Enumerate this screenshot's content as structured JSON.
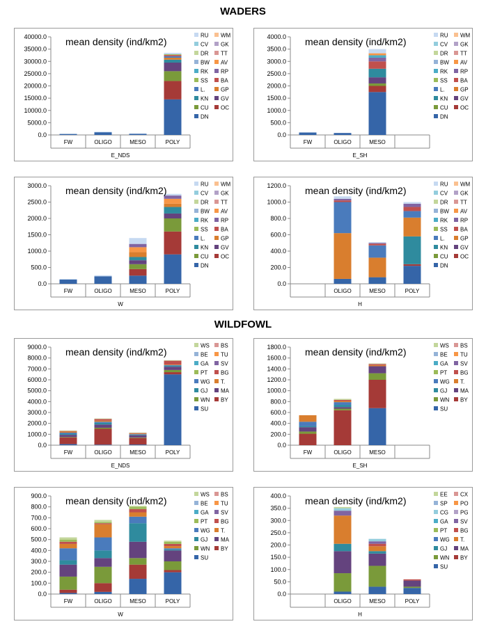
{
  "sections": {
    "waders": "WADERS",
    "wildfowl": "WILDFOWL"
  },
  "colors": {
    "DN": "#3565a8",
    "OC": "#a53a37",
    "CU": "#7a9a3a",
    "GV": "#64437e",
    "KN": "#2f8b9e",
    "GP": "#d97e2e",
    "L.": "#4a7bbc",
    "BA": "#c0504d",
    "SS": "#9bbb59",
    "RP": "#8064a2",
    "RK": "#4bacc6",
    "AV": "#f79646",
    "BW": "#95b3d7",
    "TT": "#d99694",
    "DR": "#c3d69b",
    "GK": "#b2a1c7",
    "CV": "#93cddd",
    "WM": "#fac090",
    "RU": "#c6d9f1",
    "SU": "#3565a8",
    "BY": "#a53a37",
    "WN": "#7a9a3a",
    "MA": "#64437e",
    "GJ": "#2f8b9e",
    "T.": "#d97e2e",
    "WG": "#4a7bbc",
    "BG": "#c0504d",
    "PT": "#9bbb59",
    "SV": "#8064a2",
    "GA": "#4bacc6",
    "TU": "#f79646",
    "BE": "#95b3d7",
    "BS": "#d99694",
    "WS": "#c3d69b",
    "PO": "#f79646",
    "SP": "#95b3d7",
    "CX": "#d99694",
    "EE": "#c3d69b",
    "CG": "#93cddd",
    "PG": "#b2a1c7"
  },
  "chart_data": [
    {
      "type": "bar",
      "stacked": true,
      "title": "mean density (ind/km2)",
      "xlabel": "E_NDS",
      "ylabel": "",
      "categories": [
        "FW",
        "OLIGO",
        "MESO",
        "POLY"
      ],
      "ylim": [
        0,
        40000
      ],
      "ytick_step": 5000,
      "ncat": 4,
      "legend": "top-right",
      "legend_keys": [
        [
          "RU",
          "WM"
        ],
        [
          "CV",
          "GK"
        ],
        [
          "DR",
          "TT"
        ],
        [
          "BW",
          "AV"
        ],
        [
          "RK",
          "RP"
        ],
        [
          "SS",
          "BA"
        ],
        [
          "L.",
          "GP"
        ],
        [
          "KN",
          "GV"
        ],
        [
          "CU",
          "OC"
        ],
        [
          "DN",
          ""
        ]
      ],
      "series": [
        {
          "name": "DN",
          "values": [
            400,
            1100,
            500,
            14500
          ]
        },
        {
          "name": "OC",
          "values": [
            0,
            0,
            0,
            7500
          ]
        },
        {
          "name": "CU",
          "values": [
            0,
            0,
            0,
            4000
          ]
        },
        {
          "name": "GV",
          "values": [
            0,
            0,
            0,
            3500
          ]
        },
        {
          "name": "KN",
          "values": [
            0,
            0,
            0,
            1200
          ]
        },
        {
          "name": "GP",
          "values": [
            0,
            0,
            0,
            800
          ]
        },
        {
          "name": "L.",
          "values": [
            0,
            0,
            0,
            600
          ]
        },
        {
          "name": "BA",
          "values": [
            0,
            0,
            0,
            500
          ]
        },
        {
          "name": "SS",
          "values": [
            0,
            0,
            0,
            300
          ]
        },
        {
          "name": "RU",
          "values": [
            0,
            200,
            100,
            600
          ]
        }
      ]
    },
    {
      "type": "bar",
      "stacked": true,
      "title": "mean density (ind/km2)",
      "xlabel": "E_SH",
      "ylabel": "",
      "categories": [
        "FW",
        "OLIGO",
        "MESO"
      ],
      "ylim": [
        0,
        4000
      ],
      "ytick_step": 500,
      "ncat": 4,
      "legend": "top-right",
      "legend_keys": [
        [
          "RU",
          "WM"
        ],
        [
          "CV",
          "GK"
        ],
        [
          "DR",
          "TT"
        ],
        [
          "BW",
          "AV"
        ],
        [
          "RK",
          "RP"
        ],
        [
          "SS",
          "BA"
        ],
        [
          "L.",
          "GP"
        ],
        [
          "KN",
          "GV"
        ],
        [
          "CU",
          "OC"
        ],
        [
          "DN",
          ""
        ]
      ],
      "series": [
        {
          "name": "DN",
          "values": [
            100,
            80,
            1750
          ]
        },
        {
          "name": "OC",
          "values": [
            0,
            0,
            250
          ]
        },
        {
          "name": "CU",
          "values": [
            0,
            0,
            100
          ]
        },
        {
          "name": "GV",
          "values": [
            0,
            0,
            250
          ]
        },
        {
          "name": "KN",
          "values": [
            0,
            0,
            350
          ]
        },
        {
          "name": "BA",
          "values": [
            0,
            0,
            300
          ]
        },
        {
          "name": "RP",
          "values": [
            0,
            0,
            150
          ]
        },
        {
          "name": "RK",
          "values": [
            0,
            0,
            100
          ]
        },
        {
          "name": "AV",
          "values": [
            0,
            0,
            80
          ]
        },
        {
          "name": "RU",
          "values": [
            0,
            0,
            170
          ]
        }
      ]
    },
    {
      "type": "bar",
      "stacked": true,
      "title": "mean density (ind/km2)",
      "xlabel": "W",
      "ylabel": "",
      "categories": [
        "FW",
        "OLIGO",
        "MESO",
        "POLY"
      ],
      "ylim": [
        0,
        3000
      ],
      "ytick_step": 500,
      "ncat": 4,
      "legend": "top-right",
      "legend_keys": [
        [
          "RU",
          "WM"
        ],
        [
          "CV",
          "GK"
        ],
        [
          "DR",
          "TT"
        ],
        [
          "BW",
          "AV"
        ],
        [
          "RK",
          "RP"
        ],
        [
          "SS",
          "BA"
        ],
        [
          "L.",
          "GP"
        ],
        [
          "KN",
          "GV"
        ],
        [
          "CU",
          "OC"
        ],
        [
          "DN",
          ""
        ]
      ],
      "series": [
        {
          "name": "DN",
          "values": [
            130,
            230,
            250,
            900
          ]
        },
        {
          "name": "OC",
          "values": [
            0,
            0,
            200,
            700
          ]
        },
        {
          "name": "CU",
          "values": [
            0,
            0,
            150,
            400
          ]
        },
        {
          "name": "GV",
          "values": [
            0,
            0,
            120,
            150
          ]
        },
        {
          "name": "KN",
          "values": [
            0,
            0,
            100,
            200
          ]
        },
        {
          "name": "GP",
          "values": [
            0,
            0,
            150,
            100
          ]
        },
        {
          "name": "AV",
          "values": [
            0,
            0,
            150,
            150
          ]
        },
        {
          "name": "RP",
          "values": [
            0,
            0,
            100,
            100
          ]
        },
        {
          "name": "RU",
          "values": [
            20,
            30,
            180,
            50
          ]
        }
      ]
    },
    {
      "type": "bar",
      "stacked": true,
      "title": "mean density (ind/km2)",
      "xlabel": "H",
      "ylabel": "",
      "categories": [
        "",
        "OLIGO",
        "MESO",
        "POLY"
      ],
      "ylim": [
        0,
        1200
      ],
      "ytick_step": 200,
      "ncat": 4,
      "legend": "top-right",
      "legend_keys": [
        [
          "RU",
          "WM"
        ],
        [
          "CV",
          "GK"
        ],
        [
          "DR",
          "TT"
        ],
        [
          "BW",
          "AV"
        ],
        [
          "RK",
          "RP"
        ],
        [
          "SS",
          "BA"
        ],
        [
          "L.",
          "GP"
        ],
        [
          "KN",
          "GV"
        ],
        [
          "CU",
          "OC"
        ],
        [
          "DN",
          ""
        ]
      ],
      "series": [
        {
          "name": "DN",
          "values": [
            0,
            60,
            80,
            220
          ]
        },
        {
          "name": "OC",
          "values": [
            0,
            0,
            0,
            20
          ]
        },
        {
          "name": "KN",
          "values": [
            0,
            0,
            0,
            340
          ]
        },
        {
          "name": "GP",
          "values": [
            0,
            560,
            240,
            230
          ]
        },
        {
          "name": "L.",
          "values": [
            0,
            380,
            150,
            80
          ]
        },
        {
          "name": "BA",
          "values": [
            0,
            20,
            20,
            50
          ]
        },
        {
          "name": "RP",
          "values": [
            0,
            20,
            10,
            40
          ]
        },
        {
          "name": "RU",
          "values": [
            0,
            30,
            10,
            20
          ]
        }
      ]
    },
    {
      "type": "bar",
      "stacked": true,
      "title": "mean density (ind/km2)",
      "xlabel": "E_NDS",
      "ylabel": "",
      "categories": [
        "FW",
        "OLIGO",
        "MESO",
        "POLY"
      ],
      "ylim": [
        0,
        9000
      ],
      "ytick_step": 1000,
      "ncat": 4,
      "legend": "top-right",
      "legend_keys": [
        [
          "WS",
          "BS"
        ],
        [
          "BE",
          "TU"
        ],
        [
          "GA",
          "SV"
        ],
        [
          "PT",
          "BG"
        ],
        [
          "WG",
          "T."
        ],
        [
          "GJ",
          "MA"
        ],
        [
          "WN",
          "BY"
        ],
        [
          "SU",
          ""
        ]
      ],
      "series": [
        {
          "name": "SU",
          "values": [
            100,
            50,
            60,
            6500
          ]
        },
        {
          "name": "BY",
          "values": [
            600,
            1450,
            600,
            200
          ]
        },
        {
          "name": "WN",
          "values": [
            50,
            100,
            50,
            200
          ]
        },
        {
          "name": "MA",
          "values": [
            200,
            300,
            200,
            300
          ]
        },
        {
          "name": "GJ",
          "values": [
            100,
            150,
            50,
            100
          ]
        },
        {
          "name": "WG",
          "values": [
            100,
            100,
            50,
            50
          ]
        },
        {
          "name": "T.",
          "values": [
            100,
            100,
            50,
            50
          ]
        },
        {
          "name": "BG",
          "values": [
            50,
            150,
            50,
            350
          ]
        },
        {
          "name": "WS",
          "values": [
            50,
            50,
            50,
            50
          ]
        }
      ]
    },
    {
      "type": "bar",
      "stacked": true,
      "title": "mean density (ind/km2)",
      "xlabel": "E_SH",
      "ylabel": "",
      "categories": [
        "FW",
        "OLIGO",
        "MESO"
      ],
      "ylim": [
        0,
        1800
      ],
      "ytick_step": 200,
      "ncat": 4,
      "legend": "top-right",
      "legend_keys": [
        [
          "WS",
          "BS"
        ],
        [
          "BE",
          "TU"
        ],
        [
          "GA",
          "SV"
        ],
        [
          "PT",
          "BG"
        ],
        [
          "WG",
          "T."
        ],
        [
          "GJ",
          "MA"
        ],
        [
          "WN",
          "BY"
        ],
        [
          "SU",
          ""
        ]
      ],
      "series": [
        {
          "name": "SU",
          "values": [
            0,
            0,
            680
          ]
        },
        {
          "name": "BY",
          "values": [
            210,
            640,
            520
          ]
        },
        {
          "name": "WN",
          "values": [
            40,
            30,
            120
          ]
        },
        {
          "name": "MA",
          "values": [
            80,
            30,
            130
          ]
        },
        {
          "name": "GJ",
          "values": [
            20,
            40,
            0
          ]
        },
        {
          "name": "WG",
          "values": [
            80,
            50,
            0
          ]
        },
        {
          "name": "T.",
          "values": [
            120,
            20,
            20
          ]
        },
        {
          "name": "BG",
          "values": [
            0,
            20,
            20
          ]
        },
        {
          "name": "WS",
          "values": [
            0,
            20,
            10
          ]
        }
      ]
    },
    {
      "type": "bar",
      "stacked": true,
      "title": "mean density (ind/km2)",
      "xlabel": "W",
      "ylabel": "",
      "categories": [
        "FW",
        "OLIGO",
        "MESO",
        "POLY"
      ],
      "ylim": [
        0,
        900
      ],
      "ytick_step": 100,
      "ncat": 4,
      "legend": "top-right",
      "legend_keys": [
        [
          "WS",
          "BS"
        ],
        [
          "BE",
          "TU"
        ],
        [
          "GA",
          "SV"
        ],
        [
          "PT",
          "BG"
        ],
        [
          "WG",
          "T."
        ],
        [
          "GJ",
          "MA"
        ],
        [
          "WN",
          "BY"
        ],
        [
          "SU",
          ""
        ]
      ],
      "series": [
        {
          "name": "SU",
          "values": [
            10,
            20,
            140,
            200
          ]
        },
        {
          "name": "BY",
          "values": [
            30,
            80,
            130,
            20
          ]
        },
        {
          "name": "WN",
          "values": [
            120,
            150,
            60,
            80
          ]
        },
        {
          "name": "MA",
          "values": [
            110,
            80,
            150,
            100
          ]
        },
        {
          "name": "GJ",
          "values": [
            40,
            70,
            170,
            10
          ]
        },
        {
          "name": "WG",
          "values": [
            110,
            120,
            60,
            10
          ]
        },
        {
          "name": "T.",
          "values": [
            40,
            120,
            40,
            20
          ]
        },
        {
          "name": "BG",
          "values": [
            20,
            10,
            30,
            20
          ]
        },
        {
          "name": "PT",
          "values": [
            20,
            10,
            20,
            20
          ]
        },
        {
          "name": "WS",
          "values": [
            20,
            20,
            10,
            10
          ]
        }
      ]
    },
    {
      "type": "bar",
      "stacked": true,
      "title": "mean density (ind/km2)",
      "xlabel": "H",
      "ylabel": "",
      "categories": [
        "",
        "OLIGO",
        "MESO",
        "POLY"
      ],
      "ylim": [
        0,
        400
      ],
      "ytick_step": 50,
      "ncat": 4,
      "legend": "top-right",
      "legend_keys": [
        [
          "EE",
          "CX"
        ],
        [
          "SP",
          "PO"
        ],
        [
          "CG",
          "PG"
        ],
        [
          "GA",
          "SV"
        ],
        [
          "PT",
          "BG"
        ],
        [
          "WG",
          "T."
        ],
        [
          "GJ",
          "MA"
        ],
        [
          "WN",
          "BY"
        ],
        [
          "SU",
          ""
        ]
      ],
      "series": [
        {
          "name": "SU",
          "values": [
            0,
            10,
            30,
            25
          ]
        },
        {
          "name": "WN",
          "values": [
            0,
            75,
            85,
            5
          ]
        },
        {
          "name": "MA",
          "values": [
            0,
            90,
            50,
            25
          ]
        },
        {
          "name": "GJ",
          "values": [
            0,
            30,
            10,
            0
          ]
        },
        {
          "name": "T.",
          "values": [
            0,
            115,
            20,
            0
          ]
        },
        {
          "name": "BG",
          "values": [
            0,
            0,
            10,
            5
          ]
        },
        {
          "name": "SV",
          "values": [
            0,
            20,
            10,
            0
          ]
        },
        {
          "name": "CG",
          "values": [
            0,
            10,
            10,
            0
          ]
        },
        {
          "name": "EE",
          "values": [
            0,
            5,
            0,
            0
          ]
        }
      ]
    }
  ]
}
